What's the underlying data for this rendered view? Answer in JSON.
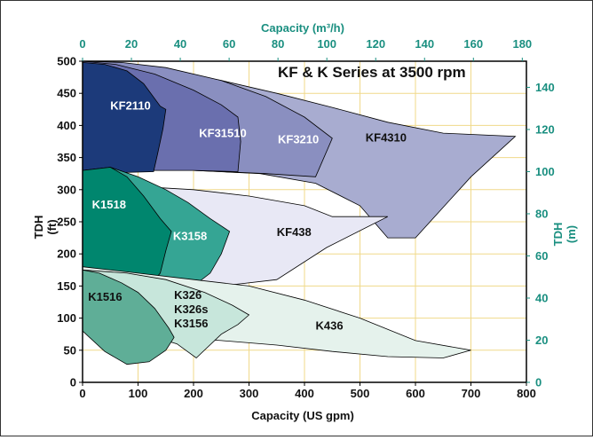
{
  "chart_data": {
    "type": "area",
    "title": "KF & K Series at 3500 rpm",
    "colors": {
      "grid": "#f0d98a",
      "teal_axis": "#1a8f80",
      "plot_border": "#000000"
    },
    "x_axis": {
      "label": "Capacity (US gpm)",
      "range": [
        0,
        800
      ],
      "ticks": [
        "0",
        "100",
        "200",
        "300",
        "400",
        "500",
        "600",
        "700",
        "800"
      ]
    },
    "x2_axis": {
      "label": "Capacity (m³/h)",
      "range": [
        0,
        181.7
      ],
      "ticks": [
        "0",
        "20",
        "40",
        "60",
        "80",
        "100",
        "120",
        "140",
        "160",
        "180"
      ]
    },
    "y_axis": {
      "label_line1": "TDH",
      "label_line2": "(ft)",
      "range": [
        0,
        500
      ],
      "ticks": [
        "0",
        "50",
        "100",
        "150",
        "200",
        "250",
        "300",
        "350",
        "400",
        "450",
        "500"
      ]
    },
    "y2_axis": {
      "label_line1": "TDH",
      "label_line2": "(m)",
      "range": [
        0,
        152.4
      ],
      "ticks": [
        "0",
        "20",
        "40",
        "60",
        "80",
        "100",
        "120",
        "140"
      ]
    },
    "grid": true,
    "regions": [
      {
        "name": "KF4310",
        "fill": "#a8acd0",
        "label_color": "#111111",
        "label": {
          "x": 510,
          "y": 375
        },
        "points": [
          [
            0,
            500
          ],
          [
            50,
            495
          ],
          [
            150,
            485
          ],
          [
            250,
            470
          ],
          [
            350,
            450
          ],
          [
            450,
            428
          ],
          [
            550,
            405
          ],
          [
            650,
            388
          ],
          [
            780,
            383
          ],
          [
            700,
            320
          ],
          [
            600,
            225
          ],
          [
            550,
            225
          ],
          [
            500,
            275
          ],
          [
            420,
            310
          ],
          [
            320,
            325
          ],
          [
            200,
            330
          ],
          [
            100,
            330
          ],
          [
            0,
            325
          ]
        ]
      },
      {
        "name": "KF3210",
        "fill": "#8a8fc0",
        "label_color": "#ffffff",
        "label": {
          "x": 352,
          "y": 372
        },
        "points": [
          [
            0,
            500
          ],
          [
            70,
            498
          ],
          [
            150,
            490
          ],
          [
            250,
            470
          ],
          [
            330,
            445
          ],
          [
            400,
            413
          ],
          [
            450,
            380
          ],
          [
            430,
            340
          ],
          [
            420,
            320
          ],
          [
            330,
            325
          ],
          [
            200,
            330
          ],
          [
            100,
            330
          ],
          [
            0,
            325
          ]
        ]
      },
      {
        "name": "KF31510",
        "fill": "#6a6fae",
        "label_color": "#ffffff",
        "label": {
          "x": 210,
          "y": 382
        },
        "points": [
          [
            0,
            500
          ],
          [
            60,
            495
          ],
          [
            130,
            480
          ],
          [
            200,
            455
          ],
          [
            250,
            432
          ],
          [
            280,
            413
          ],
          [
            285,
            375
          ],
          [
            280,
            328
          ],
          [
            200,
            330
          ],
          [
            100,
            330
          ],
          [
            0,
            325
          ]
        ]
      },
      {
        "name": "KF2110",
        "fill": "#1c3a7a",
        "label_color": "#ffffff",
        "label": {
          "x": 50,
          "y": 425
        },
        "points": [
          [
            0,
            498
          ],
          [
            40,
            495
          ],
          [
            80,
            485
          ],
          [
            110,
            465
          ],
          [
            140,
            430
          ],
          [
            150,
            425
          ],
          [
            145,
            395
          ],
          [
            135,
            355
          ],
          [
            128,
            328
          ],
          [
            0,
            325
          ]
        ]
      },
      {
        "name": "KF438",
        "fill": "#e8e8f5",
        "label_color": "#111111",
        "label": {
          "x": 350,
          "y": 228
        },
        "points": [
          [
            0,
            310
          ],
          [
            100,
            305
          ],
          [
            200,
            300
          ],
          [
            300,
            290
          ],
          [
            400,
            275
          ],
          [
            450,
            258
          ],
          [
            550,
            258
          ],
          [
            440,
            210
          ],
          [
            350,
            160
          ],
          [
            250,
            150
          ],
          [
            150,
            148
          ],
          [
            0,
            145
          ]
        ]
      },
      {
        "name": "K3158",
        "fill": "#35a594",
        "label_color": "#ffffff",
        "label": {
          "x": 163,
          "y": 222
        },
        "points": [
          [
            0,
            330
          ],
          [
            50,
            335
          ],
          [
            100,
            320
          ],
          [
            150,
            300
          ],
          [
            190,
            280
          ],
          [
            230,
            255
          ],
          [
            265,
            235
          ],
          [
            250,
            200
          ],
          [
            230,
            170
          ],
          [
            200,
            150
          ],
          [
            150,
            148
          ],
          [
            0,
            145
          ]
        ]
      },
      {
        "name": "K1518",
        "fill": "#00866e",
        "label_color": "#ffffff",
        "label": {
          "x": 17,
          "y": 271
        },
        "points": [
          [
            0,
            330
          ],
          [
            50,
            335
          ],
          [
            80,
            320
          ],
          [
            110,
            290
          ],
          [
            140,
            255
          ],
          [
            160,
            235
          ],
          [
            150,
            205
          ],
          [
            140,
            170
          ],
          [
            120,
            150
          ],
          [
            80,
            148
          ],
          [
            0,
            145
          ]
        ]
      },
      {
        "name": "K436",
        "fill": "#e5f2ec",
        "label_color": "#111111",
        "label": {
          "x": 420,
          "y": 82
        },
        "points": [
          [
            0,
            180
          ],
          [
            100,
            170
          ],
          [
            200,
            160
          ],
          [
            300,
            150
          ],
          [
            400,
            128
          ],
          [
            500,
            100
          ],
          [
            600,
            65
          ],
          [
            700,
            50
          ],
          [
            650,
            38
          ],
          [
            550,
            40
          ],
          [
            450,
            48
          ],
          [
            350,
            58
          ],
          [
            250,
            65
          ],
          [
            150,
            70
          ],
          [
            50,
            75
          ],
          [
            0,
            80
          ]
        ]
      },
      {
        "name": "K326\nK326s\nK3156",
        "fill": "#c7e6db",
        "label_color": "#111111",
        "label": {
          "x": 165,
          "y": 130
        },
        "points": [
          [
            0,
            175
          ],
          [
            80,
            170
          ],
          [
            150,
            160
          ],
          [
            220,
            140
          ],
          [
            270,
            120
          ],
          [
            300,
            105
          ],
          [
            280,
            90
          ],
          [
            250,
            75
          ],
          [
            205,
            38
          ],
          [
            170,
            60
          ],
          [
            130,
            70
          ],
          [
            100,
            70
          ],
          [
            50,
            75
          ],
          [
            0,
            80
          ]
        ]
      },
      {
        "name": "K1516",
        "fill": "#5fae97",
        "label_color": "#111111",
        "label": {
          "x": 10,
          "y": 127
        },
        "points": [
          [
            0,
            175
          ],
          [
            30,
            170
          ],
          [
            70,
            155
          ],
          [
            100,
            140
          ],
          [
            130,
            115
          ],
          [
            155,
            85
          ],
          [
            165,
            70
          ],
          [
            150,
            50
          ],
          [
            120,
            32
          ],
          [
            80,
            28
          ],
          [
            40,
            48
          ],
          [
            0,
            80
          ]
        ]
      }
    ]
  }
}
